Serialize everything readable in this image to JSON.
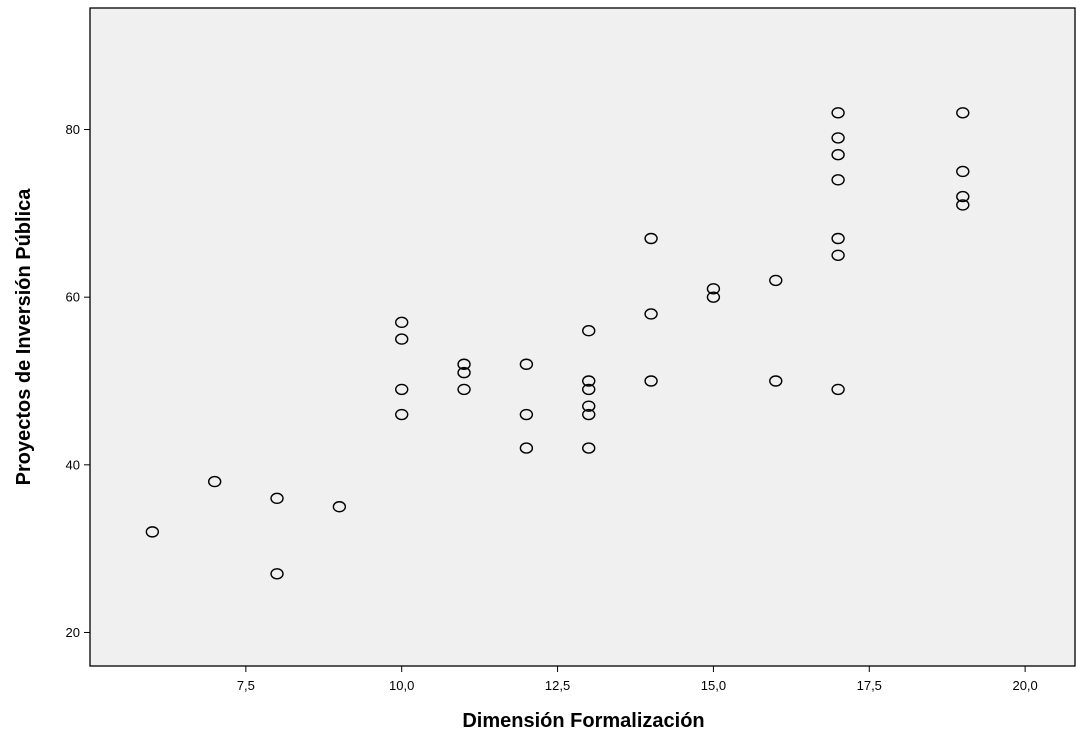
{
  "colors": {
    "plot_background": "#f0f0f0",
    "page_background": "#ffffff",
    "axis": "#000000",
    "marker_stroke": "#000000"
  },
  "chart_data": {
    "type": "scatter",
    "title": "",
    "xlabel": "Dimensión Formalización",
    "ylabel": "Proyectos de Inversión Pública",
    "xlim": [
      5.0,
      20.8
    ],
    "ylim": [
      16.0,
      94.5
    ],
    "x_ticks": [
      {
        "value": 7.5,
        "label": "7,5"
      },
      {
        "value": 10.0,
        "label": "10,0"
      },
      {
        "value": 12.5,
        "label": "12,5"
      },
      {
        "value": 15.0,
        "label": "15,0"
      },
      {
        "value": 17.5,
        "label": "17,5"
      },
      {
        "value": 20.0,
        "label": "20,0"
      }
    ],
    "y_ticks": [
      {
        "value": 20,
        "label": "20"
      },
      {
        "value": 40,
        "label": "40"
      },
      {
        "value": 60,
        "label": "60"
      },
      {
        "value": 80,
        "label": "80"
      }
    ],
    "grid": false,
    "marker": "open-circle",
    "points": [
      {
        "x": 6,
        "y": 32
      },
      {
        "x": 7,
        "y": 38
      },
      {
        "x": 8,
        "y": 36
      },
      {
        "x": 8,
        "y": 27
      },
      {
        "x": 9,
        "y": 35
      },
      {
        "x": 10,
        "y": 57
      },
      {
        "x": 10,
        "y": 55
      },
      {
        "x": 10,
        "y": 49
      },
      {
        "x": 10,
        "y": 46
      },
      {
        "x": 11,
        "y": 52
      },
      {
        "x": 11,
        "y": 51
      },
      {
        "x": 11,
        "y": 49
      },
      {
        "x": 12,
        "y": 52
      },
      {
        "x": 12,
        "y": 46
      },
      {
        "x": 12,
        "y": 42
      },
      {
        "x": 13,
        "y": 56
      },
      {
        "x": 13,
        "y": 50
      },
      {
        "x": 13,
        "y": 49
      },
      {
        "x": 13,
        "y": 47
      },
      {
        "x": 13,
        "y": 46
      },
      {
        "x": 13,
        "y": 42
      },
      {
        "x": 14,
        "y": 67
      },
      {
        "x": 14,
        "y": 58
      },
      {
        "x": 14,
        "y": 50
      },
      {
        "x": 15,
        "y": 61
      },
      {
        "x": 15,
        "y": 60
      },
      {
        "x": 16,
        "y": 62
      },
      {
        "x": 16,
        "y": 50
      },
      {
        "x": 17,
        "y": 82
      },
      {
        "x": 17,
        "y": 79
      },
      {
        "x": 17,
        "y": 77
      },
      {
        "x": 17,
        "y": 74
      },
      {
        "x": 17,
        "y": 67
      },
      {
        "x": 17,
        "y": 65
      },
      {
        "x": 17,
        "y": 49
      },
      {
        "x": 19,
        "y": 82
      },
      {
        "x": 19,
        "y": 75
      },
      {
        "x": 19,
        "y": 72
      },
      {
        "x": 19,
        "y": 71
      }
    ]
  }
}
